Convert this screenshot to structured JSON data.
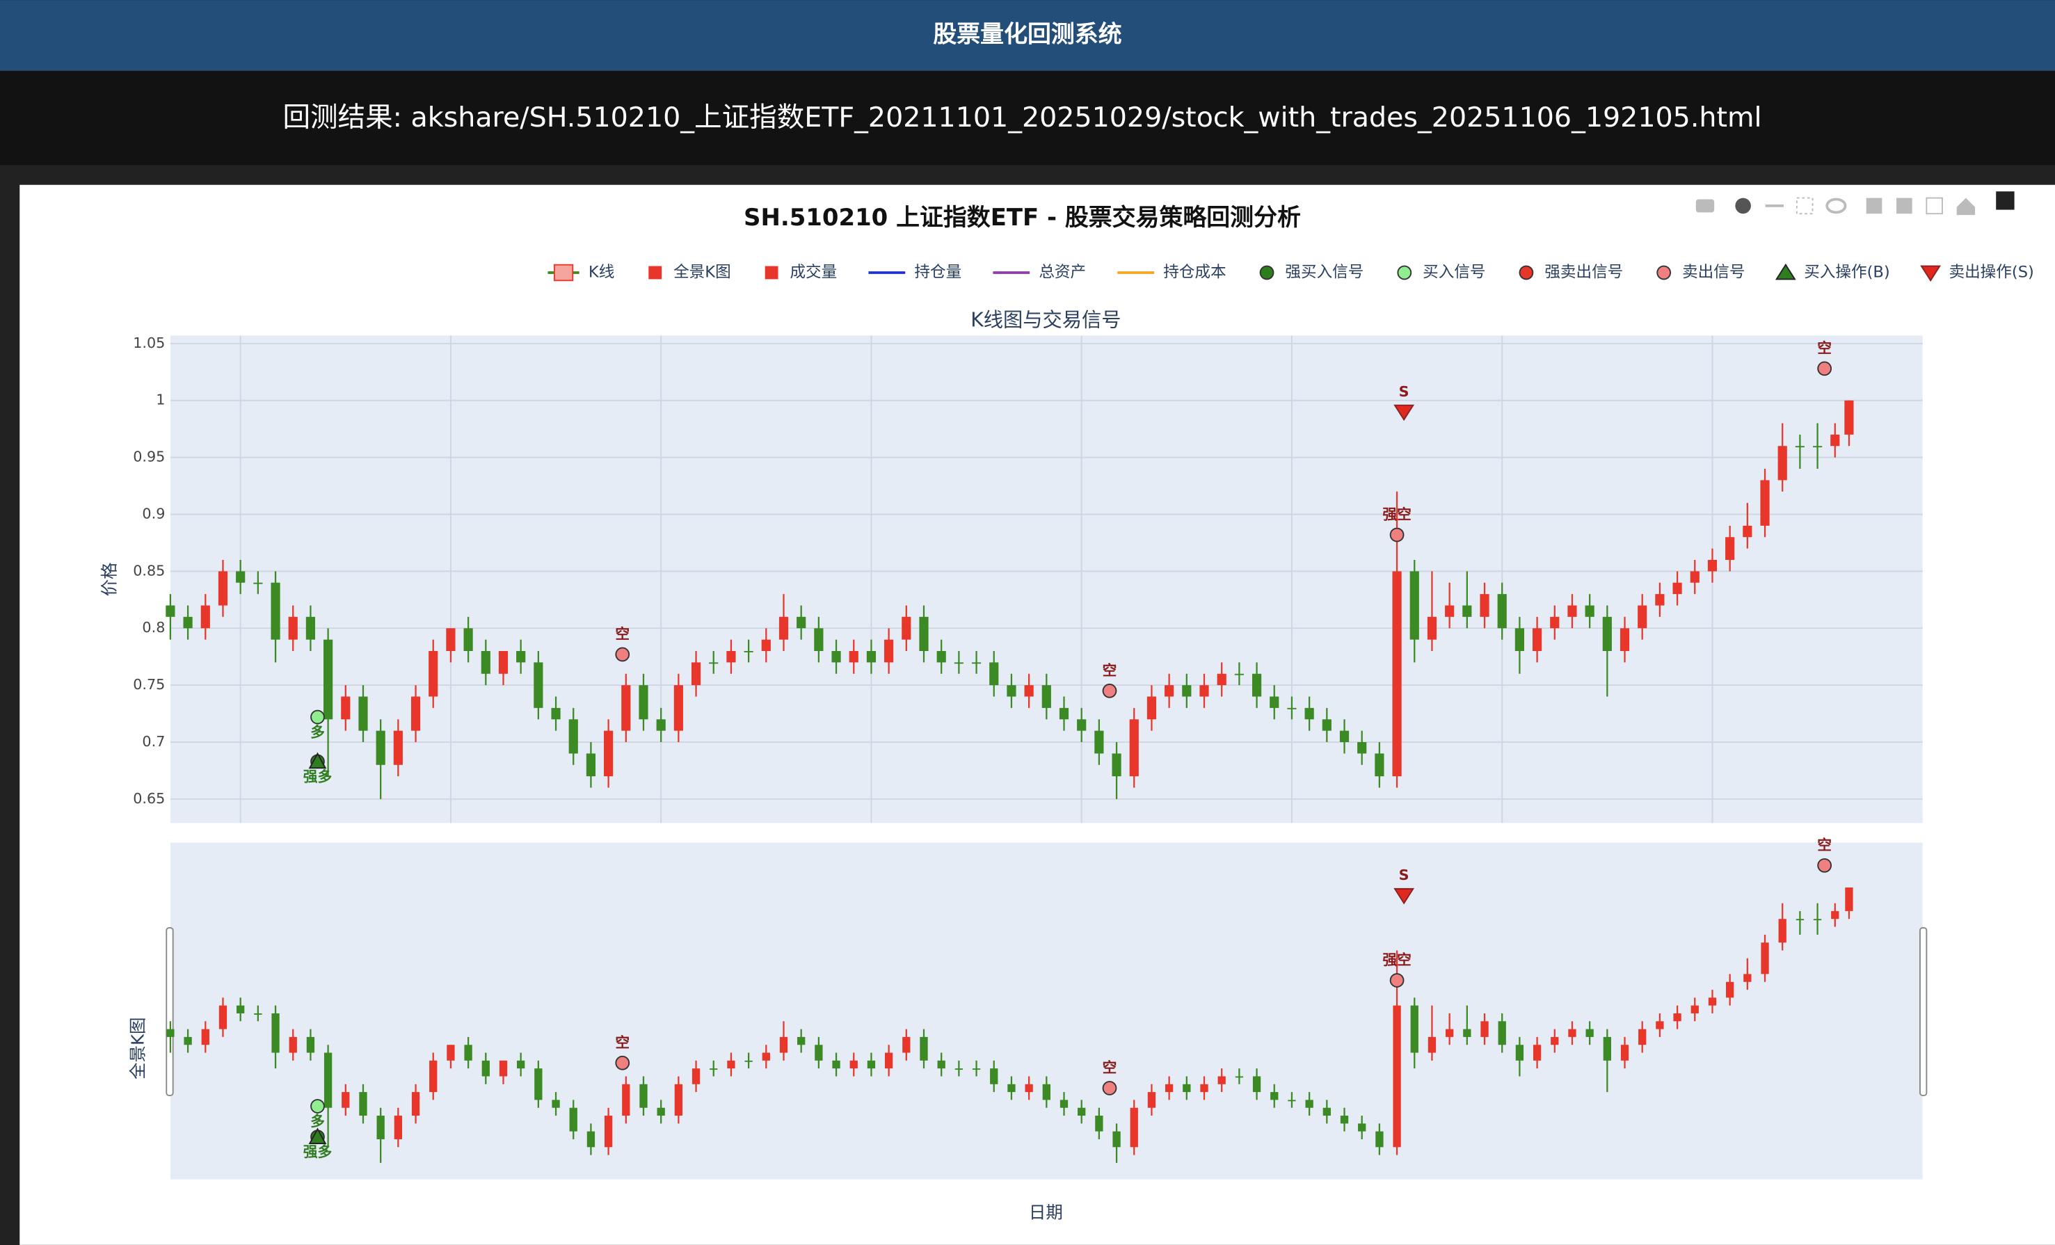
{
  "header": {
    "title": "股票量化回测系统",
    "result": "回测结果: akshare/SH.510210_上证指数ETF_20211101_20251029/stock_with_trades_20251106_192105.html"
  },
  "chart_data": {
    "type": "candlestick",
    "title": "SH.510210 上证指数ETF - 股票交易策略回测分析",
    "subtitle": "K线图与交易信号",
    "x_label": "日期",
    "y_label": "价格",
    "overview_label": "全景K图",
    "grid": true,
    "up_color": "#e8372a",
    "down_color": "#3b8a23",
    "legend": [
      {
        "name": "K线",
        "symbol": "candle",
        "color": "#3b8a23"
      },
      {
        "name": "全景K图",
        "symbol": "square",
        "color": "#e8372a"
      },
      {
        "name": "成交量",
        "symbol": "square",
        "color": "#e8372a"
      },
      {
        "name": "持仓量",
        "symbol": "line",
        "color": "#2233cc"
      },
      {
        "name": "总资产",
        "symbol": "line",
        "color": "#8e3ea8"
      },
      {
        "name": "持仓成本",
        "symbol": "line",
        "color": "#f5a623"
      },
      {
        "name": "强买入信号",
        "symbol": "circle",
        "color": "#2e7d1e"
      },
      {
        "name": "买入信号",
        "symbol": "circle",
        "color": "#90ee90"
      },
      {
        "name": "强卖出信号",
        "symbol": "circle",
        "color": "#e8372a"
      },
      {
        "name": "卖出信号",
        "symbol": "circle",
        "color": "#f08080"
      },
      {
        "name": "买入操作(B)",
        "symbol": "triangle-up",
        "color": "#2e7d1e"
      },
      {
        "name": "卖出操作(S)",
        "symbol": "triangle-down",
        "color": "#e0281e"
      }
    ],
    "xlim": [
      0,
      50
    ],
    "xticks": [
      2,
      8,
      14,
      20,
      26,
      32,
      38,
      44
    ],
    "ylim": [
      0.629,
      1.057
    ],
    "yticks": [
      0.65,
      0.7,
      0.75,
      0.8,
      0.85,
      0.9,
      0.95,
      1,
      1.05
    ],
    "x": [
      0,
      0.5,
      1,
      1.5,
      2,
      2.5,
      3,
      3.5,
      4,
      4.5,
      5,
      5.5,
      6,
      6.5,
      7,
      7.5,
      8,
      8.5,
      9,
      9.5,
      10,
      10.5,
      11,
      11.5,
      12,
      12.5,
      13,
      13.5,
      14,
      14.5,
      15,
      15.5,
      16,
      16.5,
      17,
      17.5,
      18,
      18.5,
      19,
      19.5,
      20,
      20.5,
      21,
      21.5,
      22,
      22.5,
      23,
      23.5,
      24,
      24.5,
      25,
      25.5,
      26,
      26.5,
      27,
      27.5,
      28,
      28.5,
      29,
      29.5,
      30,
      30.5,
      31,
      31.5,
      32,
      32.5,
      33,
      33.5,
      34,
      34.5,
      35,
      35.5,
      36,
      36.5,
      37,
      37.5,
      38,
      38.5,
      39,
      39.5,
      40,
      40.5,
      41,
      41.5,
      42,
      42.5,
      43,
      43.5,
      44,
      44.5,
      45,
      45.5,
      46,
      46.5,
      47,
      47.5,
      47.9
    ],
    "open": [
      0.82,
      0.81,
      0.8,
      0.82,
      0.85,
      0.84,
      0.84,
      0.79,
      0.81,
      0.79,
      0.72,
      0.74,
      0.71,
      0.68,
      0.71,
      0.74,
      0.78,
      0.8,
      0.78,
      0.76,
      0.78,
      0.77,
      0.73,
      0.72,
      0.69,
      0.67,
      0.71,
      0.75,
      0.72,
      0.71,
      0.75,
      0.77,
      0.77,
      0.78,
      0.78,
      0.79,
      0.81,
      0.8,
      0.78,
      0.77,
      0.78,
      0.77,
      0.79,
      0.81,
      0.78,
      0.77,
      0.77,
      0.77,
      0.75,
      0.74,
      0.75,
      0.73,
      0.72,
      0.71,
      0.69,
      0.67,
      0.72,
      0.74,
      0.75,
      0.74,
      0.75,
      0.76,
      0.76,
      0.74,
      0.73,
      0.73,
      0.72,
      0.71,
      0.7,
      0.69,
      0.67,
      0.85,
      0.79,
      0.81,
      0.82,
      0.81,
      0.83,
      0.8,
      0.78,
      0.8,
      0.81,
      0.82,
      0.81,
      0.78,
      0.8,
      0.82,
      0.83,
      0.84,
      0.85,
      0.86,
      0.88,
      0.89,
      0.93,
      0.96,
      0.96,
      0.96,
      0.97
    ],
    "high": [
      0.83,
      0.82,
      0.83,
      0.86,
      0.86,
      0.85,
      0.85,
      0.82,
      0.82,
      0.8,
      0.75,
      0.75,
      0.72,
      0.72,
      0.75,
      0.79,
      0.8,
      0.81,
      0.79,
      0.78,
      0.79,
      0.78,
      0.74,
      0.73,
      0.7,
      0.72,
      0.76,
      0.76,
      0.73,
      0.76,
      0.78,
      0.78,
      0.79,
      0.79,
      0.8,
      0.83,
      0.82,
      0.81,
      0.79,
      0.79,
      0.79,
      0.8,
      0.82,
      0.82,
      0.79,
      0.78,
      0.78,
      0.78,
      0.76,
      0.76,
      0.76,
      0.74,
      0.73,
      0.72,
      0.7,
      0.73,
      0.75,
      0.76,
      0.76,
      0.76,
      0.77,
      0.77,
      0.77,
      0.75,
      0.74,
      0.74,
      0.73,
      0.72,
      0.71,
      0.7,
      0.92,
      0.86,
      0.85,
      0.84,
      0.85,
      0.84,
      0.84,
      0.81,
      0.81,
      0.82,
      0.83,
      0.83,
      0.82,
      0.81,
      0.83,
      0.84,
      0.85,
      0.86,
      0.87,
      0.89,
      0.91,
      0.94,
      0.98,
      0.97,
      0.98,
      0.98,
      1.0
    ],
    "low": [
      0.79,
      0.79,
      0.79,
      0.81,
      0.83,
      0.83,
      0.77,
      0.78,
      0.78,
      0.67,
      0.71,
      0.7,
      0.65,
      0.67,
      0.7,
      0.73,
      0.77,
      0.77,
      0.75,
      0.75,
      0.76,
      0.72,
      0.71,
      0.68,
      0.66,
      0.66,
      0.7,
      0.71,
      0.7,
      0.7,
      0.74,
      0.76,
      0.76,
      0.77,
      0.77,
      0.78,
      0.79,
      0.77,
      0.76,
      0.76,
      0.76,
      0.76,
      0.78,
      0.77,
      0.76,
      0.76,
      0.76,
      0.74,
      0.73,
      0.73,
      0.72,
      0.71,
      0.7,
      0.68,
      0.65,
      0.66,
      0.71,
      0.73,
      0.73,
      0.73,
      0.74,
      0.75,
      0.73,
      0.72,
      0.72,
      0.71,
      0.7,
      0.69,
      0.68,
      0.66,
      0.66,
      0.77,
      0.78,
      0.8,
      0.8,
      0.8,
      0.79,
      0.76,
      0.77,
      0.79,
      0.8,
      0.8,
      0.74,
      0.77,
      0.79,
      0.81,
      0.82,
      0.83,
      0.84,
      0.85,
      0.87,
      0.88,
      0.92,
      0.94,
      0.94,
      0.95,
      0.96
    ],
    "close": [
      0.81,
      0.8,
      0.82,
      0.85,
      0.84,
      0.84,
      0.79,
      0.81,
      0.79,
      0.72,
      0.74,
      0.71,
      0.68,
      0.71,
      0.74,
      0.78,
      0.8,
      0.78,
      0.76,
      0.78,
      0.77,
      0.73,
      0.72,
      0.69,
      0.67,
      0.71,
      0.75,
      0.72,
      0.71,
      0.75,
      0.77,
      0.77,
      0.78,
      0.78,
      0.79,
      0.81,
      0.8,
      0.78,
      0.77,
      0.78,
      0.77,
      0.79,
      0.81,
      0.78,
      0.77,
      0.77,
      0.77,
      0.75,
      0.74,
      0.75,
      0.73,
      0.72,
      0.71,
      0.69,
      0.67,
      0.72,
      0.74,
      0.75,
      0.74,
      0.75,
      0.76,
      0.76,
      0.74,
      0.73,
      0.73,
      0.72,
      0.71,
      0.7,
      0.69,
      0.67,
      0.85,
      0.79,
      0.81,
      0.82,
      0.81,
      0.83,
      0.8,
      0.78,
      0.8,
      0.81,
      0.82,
      0.81,
      0.78,
      0.8,
      0.82,
      0.83,
      0.84,
      0.85,
      0.86,
      0.88,
      0.89,
      0.93,
      0.96,
      0.96,
      0.96,
      0.97,
      1.0
    ],
    "signals": [
      {
        "symbol": "circle",
        "color": "#90ee90",
        "text_color": "#2e7d1e",
        "text_position": "bottom",
        "x": [
          4.2
        ],
        "values": [
          0.722
        ],
        "text": [
          "多"
        ]
      },
      {
        "symbol": "circle",
        "color": "#2e7d1e",
        "text_color": "#2e7d1e",
        "text_position": "bottom",
        "x": [
          4.2
        ],
        "values": [
          0.683
        ],
        "text": [
          "强多"
        ]
      },
      {
        "symbol": "triangle-up",
        "color": "#2e7d1e",
        "x": [
          4.2
        ],
        "values": [
          0.683
        ]
      },
      {
        "symbol": "circle",
        "color": "#f08080",
        "text_color": "#8b1a1a",
        "text_position": "top",
        "x": [
          12.9,
          26.8,
          35.0,
          47.2
        ],
        "values": [
          0.777,
          0.745,
          0.882,
          1.028
        ],
        "text": [
          "空",
          "空",
          "强空",
          "空"
        ]
      },
      {
        "symbol": "triangle-down",
        "color": "#e0281e",
        "text_color": "#8b1a1a",
        "text_position": "top",
        "x": [
          35.2
        ],
        "values": [
          0.99
        ],
        "text": [
          "S"
        ]
      }
    ]
  }
}
